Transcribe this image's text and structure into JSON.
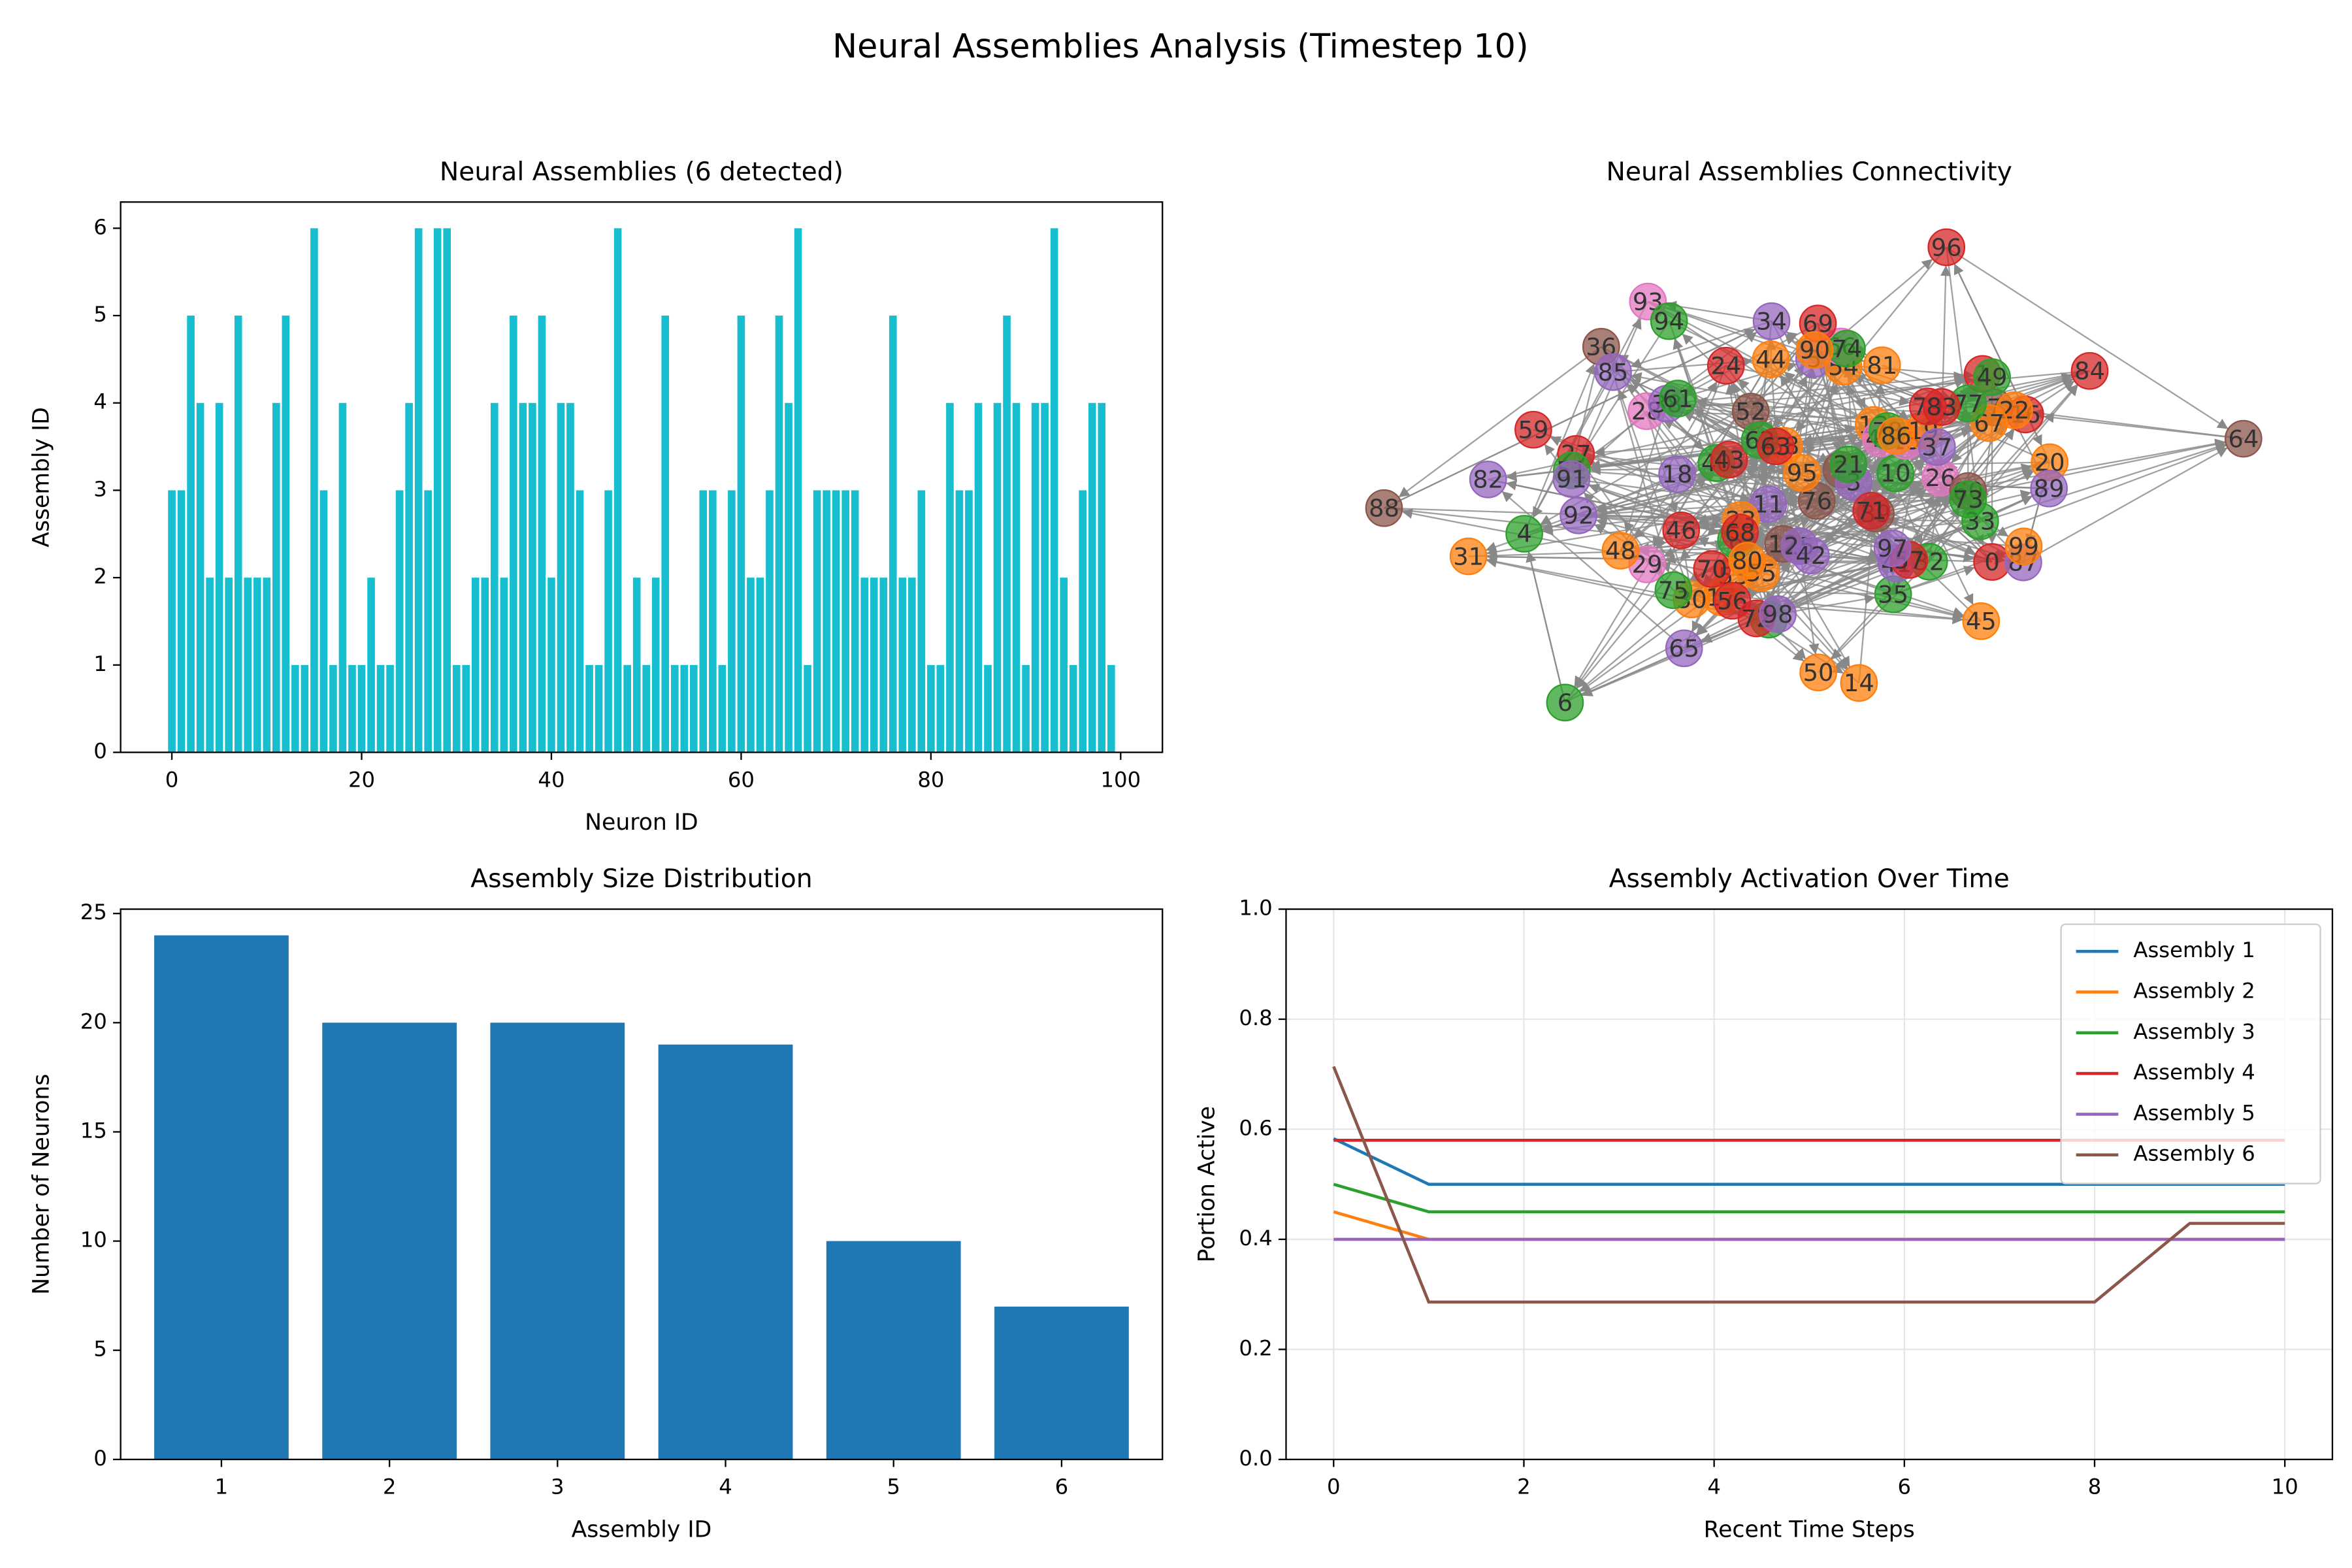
{
  "title": "Neural Assemblies Analysis (Timestep 10)",
  "chart_data": [
    {
      "type": "bar",
      "title": "Neural Assemblies (6 detected)",
      "xlabel": "Neuron ID",
      "ylabel": "Assembly ID",
      "color": "#17becf",
      "x": [
        0,
        1,
        2,
        3,
        4,
        5,
        6,
        7,
        8,
        9,
        10,
        11,
        12,
        13,
        14,
        15,
        16,
        17,
        18,
        19,
        20,
        21,
        22,
        23,
        24,
        25,
        26,
        27,
        28,
        29,
        30,
        31,
        32,
        33,
        34,
        35,
        36,
        37,
        38,
        39,
        40,
        41,
        42,
        43,
        44,
        45,
        46,
        47,
        48,
        49,
        50,
        51,
        52,
        53,
        54,
        55,
        56,
        57,
        58,
        59,
        60,
        61,
        62,
        63,
        64,
        65,
        66,
        67,
        68,
        69,
        70,
        71,
        72,
        73,
        74,
        75,
        76,
        77,
        78,
        79,
        80,
        81,
        82,
        83,
        84,
        85,
        86,
        87,
        88,
        89,
        90,
        91,
        92,
        93,
        94,
        95,
        96,
        97,
        98,
        99
      ],
      "values": [
        3,
        3,
        5,
        4,
        2,
        4,
        2,
        5,
        2,
        2,
        2,
        4,
        5,
        1,
        1,
        6,
        3,
        1,
        4,
        1,
        1,
        2,
        1,
        1,
        3,
        4,
        6,
        3,
        6,
        6,
        1,
        1,
        2,
        2,
        4,
        2,
        5,
        4,
        4,
        5,
        2,
        4,
        4,
        3,
        1,
        1,
        3,
        6,
        1,
        2,
        1,
        2,
        5,
        1,
        1,
        1,
        3,
        3,
        1,
        3,
        5,
        2,
        2,
        3,
        5,
        4,
        6,
        1,
        3,
        3,
        3,
        3,
        3,
        2,
        2,
        2,
        5,
        2,
        2,
        3,
        1,
        1,
        4,
        3,
        3,
        4,
        1,
        4,
        5,
        4,
        1,
        4,
        4,
        6,
        2,
        1,
        3,
        4,
        4,
        1
      ],
      "xlim": [
        -5.4,
        104.4
      ],
      "xticks": [
        0,
        20,
        40,
        60,
        80,
        100
      ],
      "ylim": [
        0,
        6.3
      ],
      "yticks": [
        0,
        1,
        2,
        3,
        4,
        5,
        6
      ]
    },
    {
      "type": "network",
      "title": "Neural Assemblies Connectivity",
      "palette": [
        "#1f77b4",
        "#ff7f0e",
        "#2ca02c",
        "#d62728",
        "#9467bd",
        "#8c564b",
        "#e377c2"
      ],
      "nodes": [
        "0",
        "1",
        "2",
        "3",
        "4",
        "5",
        "6",
        "7",
        "8",
        "9",
        "10",
        "11",
        "12",
        "13",
        "14",
        "15",
        "16",
        "17",
        "18",
        "19",
        "20",
        "21",
        "22",
        "23",
        "24",
        "25",
        "26",
        "27",
        "28",
        "29",
        "30",
        "31",
        "32",
        "33",
        "34",
        "35",
        "36",
        "37",
        "38",
        "39",
        "40",
        "41",
        "42",
        "43",
        "44",
        "45",
        "46",
        "47",
        "48",
        "49",
        "50",
        "51",
        "52",
        "53",
        "54",
        "55",
        "56",
        "57",
        "58",
        "59",
        "60",
        "61",
        "62",
        "63",
        "64",
        "65",
        "66",
        "67",
        "68",
        "69",
        "70",
        "71",
        "72",
        "73",
        "74",
        "75",
        "76",
        "77",
        "78",
        "79",
        "80",
        "81",
        "82",
        "83",
        "84",
        "85",
        "86",
        "87",
        "88",
        "89",
        "90",
        "91",
        "92",
        "93",
        "94",
        "95",
        "96",
        "97",
        "98",
        "99"
      ]
    },
    {
      "type": "bar",
      "title": "Assembly Size Distribution",
      "xlabel": "Assembly ID",
      "ylabel": "Number of Neurons",
      "color": "#1f77b4",
      "x": [
        1,
        2,
        3,
        4,
        5,
        6
      ],
      "values": [
        24,
        20,
        20,
        19,
        10,
        7
      ],
      "xlim": [
        0.4,
        6.6
      ],
      "xticks": [
        1,
        2,
        3,
        4,
        5,
        6
      ],
      "ylim": [
        0,
        25.2
      ],
      "yticks": [
        0,
        5,
        10,
        15,
        20,
        25
      ]
    },
    {
      "type": "line",
      "title": "Assembly Activation Over Time",
      "xlabel": "Recent Time Steps",
      "ylabel": "Portion Active",
      "grid": true,
      "legend": "upper right",
      "x": [
        0,
        1,
        2,
        3,
        4,
        5,
        6,
        7,
        8,
        9,
        10
      ],
      "xlim": [
        -0.5,
        10.5
      ],
      "xticks": [
        0,
        2,
        4,
        6,
        8,
        10
      ],
      "ylim": [
        0,
        1
      ],
      "yticks": [
        {
          "value": 0,
          "label": "0.0"
        },
        {
          "value": 0.2,
          "label": "0.2"
        },
        {
          "value": 0.4,
          "label": "0.4"
        },
        {
          "value": 0.6,
          "label": "0.6"
        },
        {
          "value": 0.8,
          "label": "0.8"
        },
        {
          "value": 1,
          "label": "1.0"
        }
      ],
      "series": [
        {
          "name": "Assembly 1",
          "color": "#1f77b4",
          "values": [
            0.583,
            0.5,
            0.5,
            0.5,
            0.5,
            0.5,
            0.5,
            0.5,
            0.5,
            0.5,
            0.5
          ]
        },
        {
          "name": "Assembly 2",
          "color": "#ff7f0e",
          "values": [
            0.45,
            0.4,
            0.4,
            0.4,
            0.4,
            0.4,
            0.4,
            0.4,
            0.4,
            0.4,
            0.4
          ]
        },
        {
          "name": "Assembly 3",
          "color": "#2ca02c",
          "values": [
            0.5,
            0.45,
            0.45,
            0.45,
            0.45,
            0.45,
            0.45,
            0.45,
            0.45,
            0.45,
            0.45
          ]
        },
        {
          "name": "Assembly 4",
          "color": "#d62728",
          "values": [
            0.58,
            0.58,
            0.58,
            0.58,
            0.58,
            0.58,
            0.58,
            0.58,
            0.58,
            0.58,
            0.58
          ]
        },
        {
          "name": "Assembly 5",
          "color": "#9467bd",
          "values": [
            0.4,
            0.4,
            0.4,
            0.4,
            0.4,
            0.4,
            0.4,
            0.4,
            0.4,
            0.4,
            0.4
          ]
        },
        {
          "name": "Assembly 6",
          "color": "#8c564b",
          "values": [
            0.714,
            0.286,
            0.286,
            0.286,
            0.286,
            0.286,
            0.286,
            0.286,
            0.286,
            0.429,
            0.429
          ]
        }
      ]
    }
  ]
}
